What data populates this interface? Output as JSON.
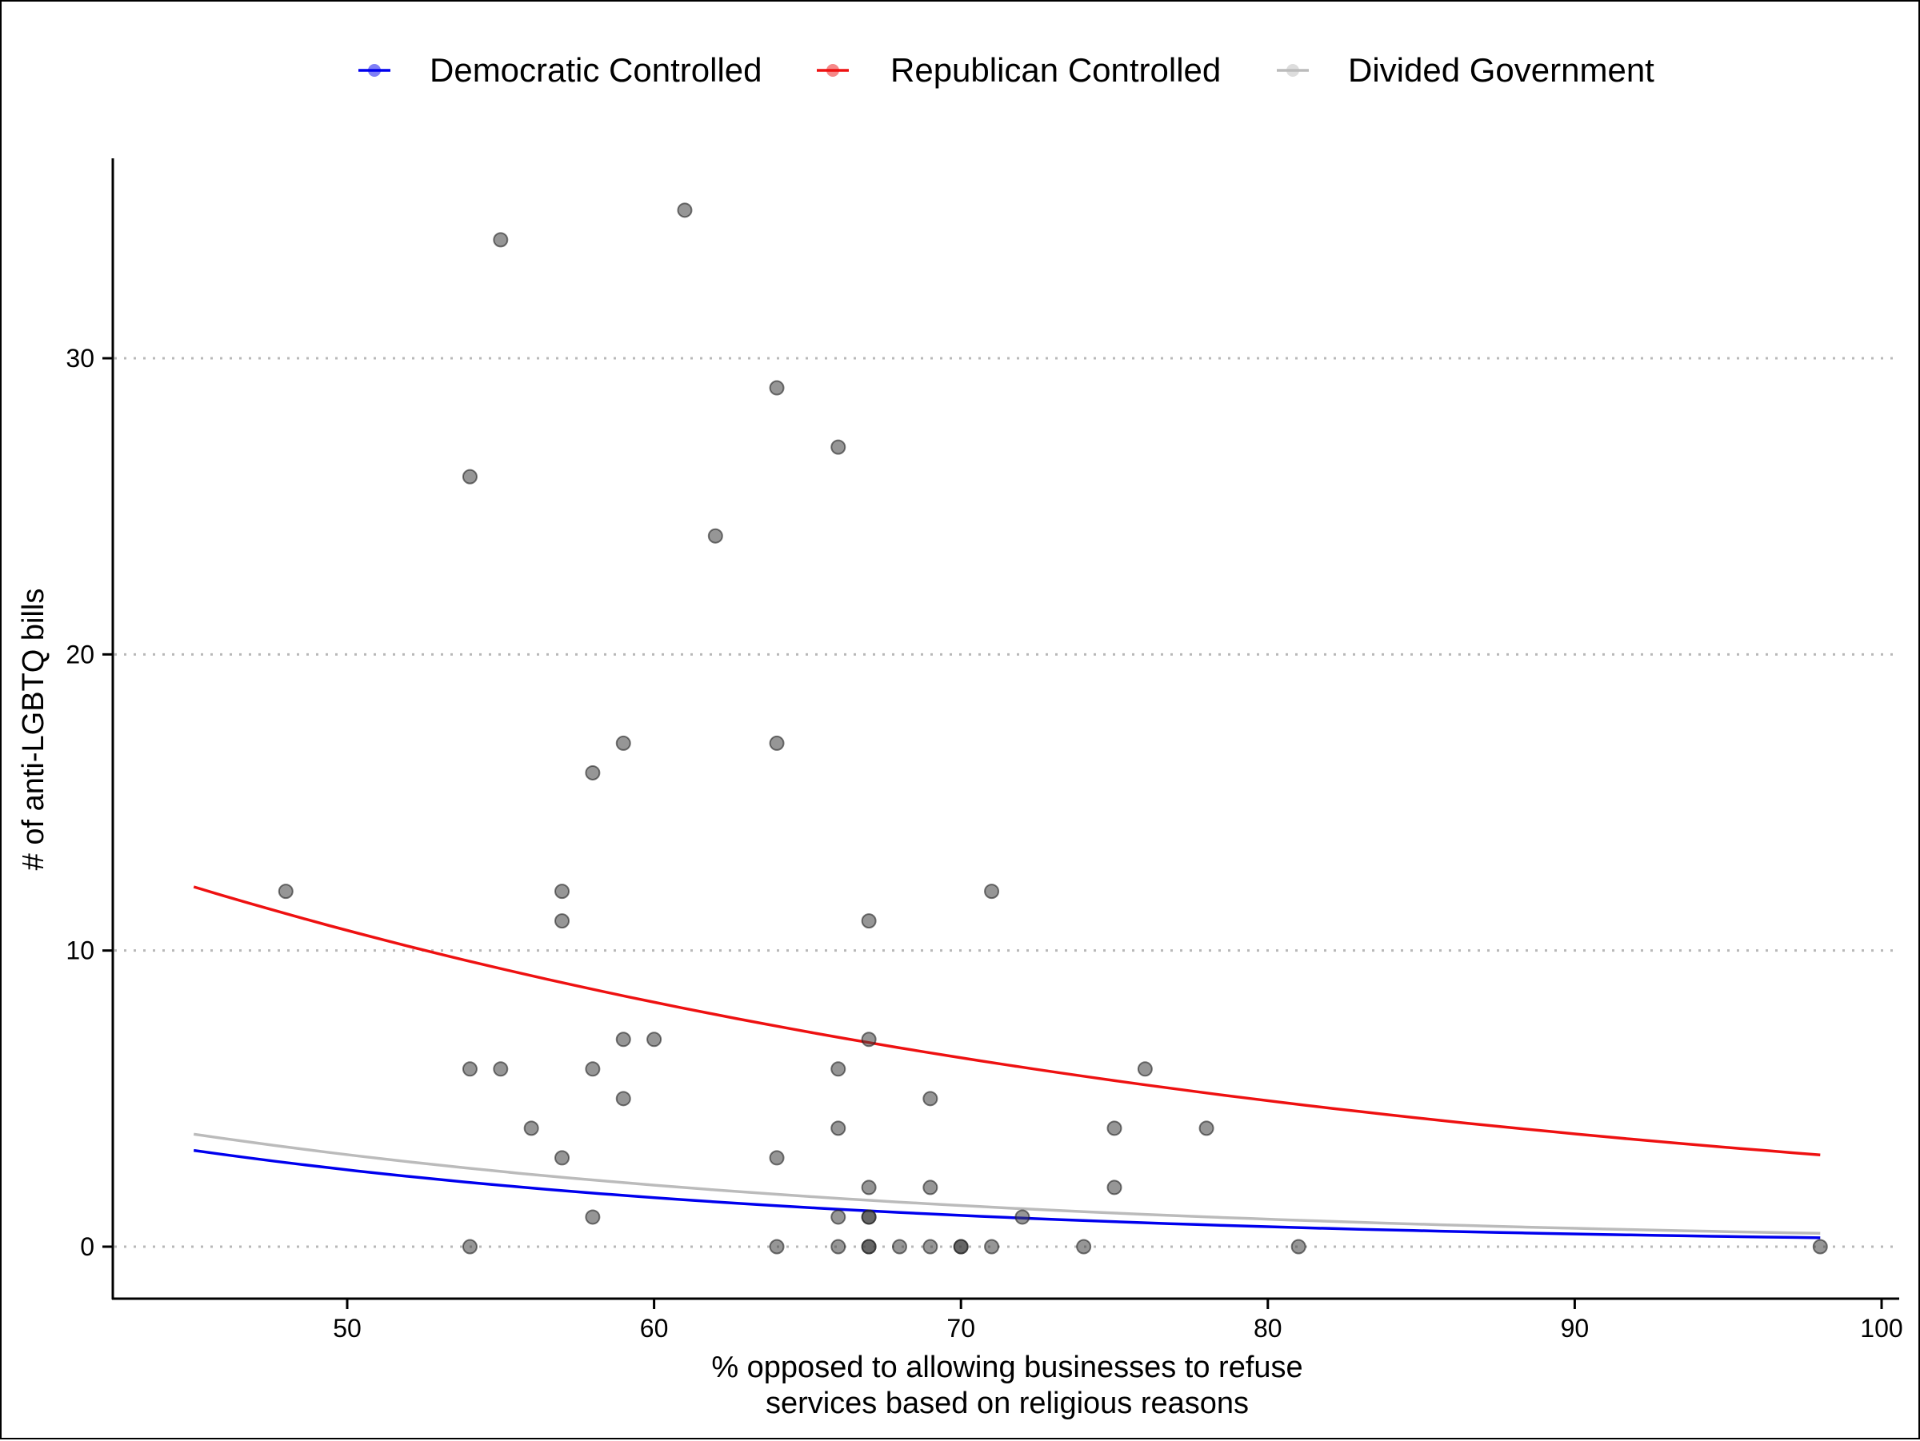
{
  "chart_data": {
    "type": "scatter",
    "title": "",
    "xlabel": [
      "% opposed to allowing businesses to refuse",
      "services based on religious reasons"
    ],
    "ylabel": "# of anti-LGBTQ bills",
    "xlim": [
      42.5,
      100.5
    ],
    "ylim": [
      -1.75,
      36.5
    ],
    "x_ticks": [
      50,
      60,
      70,
      80,
      90,
      100
    ],
    "y_ticks": [
      0,
      10,
      20,
      30
    ],
    "grid": "horizontal dotted lines at major y ticks",
    "legend_position": "top",
    "points": {
      "color": "#404040",
      "values": [
        [
          48,
          12
        ],
        [
          54,
          26
        ],
        [
          54,
          6
        ],
        [
          54,
          0
        ],
        [
          55,
          34
        ],
        [
          55,
          6
        ],
        [
          56,
          4
        ],
        [
          57,
          12
        ],
        [
          57,
          11
        ],
        [
          57,
          3
        ],
        [
          58,
          16
        ],
        [
          58,
          6
        ],
        [
          58,
          1
        ],
        [
          59,
          17
        ],
        [
          59,
          7
        ],
        [
          59,
          5
        ],
        [
          60,
          7
        ],
        [
          61,
          35
        ],
        [
          62,
          24
        ],
        [
          64,
          29
        ],
        [
          64,
          17
        ],
        [
          64,
          3
        ],
        [
          64,
          0
        ],
        [
          66,
          27
        ],
        [
          66,
          6
        ],
        [
          66,
          4
        ],
        [
          66,
          1
        ],
        [
          66,
          0
        ],
        [
          67,
          11
        ],
        [
          67,
          7
        ],
        [
          67,
          2
        ],
        [
          67,
          1
        ],
        [
          67,
          1
        ],
        [
          67,
          0
        ],
        [
          67,
          0
        ],
        [
          68,
          0
        ],
        [
          69,
          5
        ],
        [
          69,
          2
        ],
        [
          69,
          0
        ],
        [
          70,
          0
        ],
        [
          70,
          0
        ],
        [
          71,
          12
        ],
        [
          71,
          0
        ],
        [
          72,
          1
        ],
        [
          74,
          0
        ],
        [
          75,
          4
        ],
        [
          75,
          2
        ],
        [
          76,
          6
        ],
        [
          78,
          4
        ],
        [
          81,
          0
        ],
        [
          98,
          0
        ]
      ]
    },
    "series": [
      {
        "name": "Democratic Controlled",
        "color": "#0000ee",
        "type": "line",
        "x_range": [
          45,
          98
        ],
        "y_at_start": 3.25,
        "y_at_end": 0.3
      },
      {
        "name": "Republican Controlled",
        "color": "#ee1111",
        "type": "line",
        "x_range": [
          45,
          98
        ],
        "y_at_start": 12.15,
        "y_at_end": 3.1
      },
      {
        "name": "Divided Government",
        "color": "#bbbbbb",
        "type": "line",
        "x_range": [
          45,
          98
        ],
        "y_at_start": 3.8,
        "y_at_end": 0.45
      }
    ]
  }
}
